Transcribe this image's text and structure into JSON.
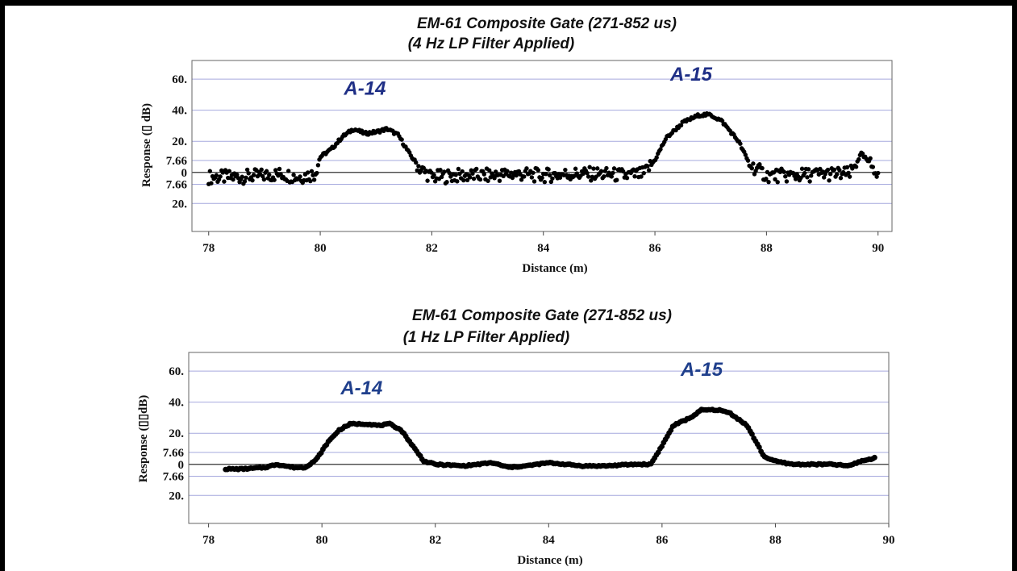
{
  "chart_data": [
    {
      "type": "scatter",
      "title": "EM-61 Composite Gate (271-852 us)",
      "subtitle": "(4 Hz LP Filter Applied)",
      "xlabel": "Distance (m)",
      "ylabel": "Response (▯ dB)",
      "xlim": [
        77.7,
        90.25
      ],
      "ylim": [
        -38,
        72
      ],
      "x_ticks": [
        78,
        80,
        82,
        84,
        86,
        88,
        90
      ],
      "x_tick_labels": [
        "78",
        "80",
        "82",
        "84",
        "86",
        "88",
        "90"
      ],
      "y_ticks": [
        60,
        40,
        20,
        7.66,
        0,
        -7.66,
        -20
      ],
      "y_tick_labels": [
        "60.",
        "40.",
        "20.",
        "7.66",
        "0",
        "7.66",
        "20."
      ],
      "grid": true,
      "annotations": [
        {
          "text": "A-14",
          "x": 80.8,
          "y": 50,
          "color": "#1f2f86"
        },
        {
          "text": "A-15",
          "x": 86.65,
          "y": 59,
          "color": "#1f2f86"
        }
      ],
      "series": [
        {
          "marker": "dot",
          "x": [
            78.0,
            78.5,
            79.0,
            79.3,
            79.6,
            79.9,
            80.0,
            80.2,
            80.4,
            80.6,
            80.8,
            81.0,
            81.2,
            81.4,
            81.6,
            81.8,
            82.0,
            82.5,
            83.0,
            83.5,
            84.0,
            84.5,
            85.0,
            85.5,
            85.8,
            86.0,
            86.2,
            86.5,
            86.8,
            87.0,
            87.2,
            87.5,
            87.7,
            88.0,
            88.5,
            89.0,
            89.5,
            89.7,
            90.0
          ],
          "values": [
            -3,
            -3,
            -2,
            -1,
            -3,
            -1,
            10,
            15,
            23,
            28,
            25,
            26,
            28,
            24,
            12,
            2,
            -3,
            -2,
            -2,
            -1,
            -2,
            -1,
            -1,
            -2,
            -1,
            8,
            22,
            32,
            37,
            37,
            33,
            20,
            5,
            -2,
            -2,
            -1,
            -1,
            12,
            0
          ]
        }
      ]
    },
    {
      "type": "line",
      "title": "EM-61 Composite Gate (271-852 us)",
      "subtitle": "(1 Hz LP Filter Applied)",
      "xlabel": "Distance (m)",
      "ylabel": "Response (▯▯dB)",
      "xlim": [
        77.65,
        90.0
      ],
      "ylim": [
        -38,
        72
      ],
      "x_ticks": [
        78,
        80,
        82,
        84,
        86,
        88,
        90
      ],
      "x_tick_labels": [
        "78",
        "80",
        "82",
        "84",
        "86",
        "88",
        "90"
      ],
      "y_ticks": [
        60,
        40,
        20,
        7.66,
        0,
        -7.66,
        -20
      ],
      "y_tick_labels": [
        "60.",
        "40.",
        "20.",
        "7.66",
        "0",
        "7.66",
        "20."
      ],
      "grid": true,
      "annotations": [
        {
          "text": "A-14",
          "x": 80.7,
          "y": 45,
          "color": "#1f3f8c"
        },
        {
          "text": "A-15",
          "x": 86.7,
          "y": 57,
          "color": "#1f3f8c"
        }
      ],
      "series": [
        {
          "marker": "thick-line",
          "x": [
            78.3,
            78.6,
            79.0,
            79.2,
            79.5,
            79.7,
            79.9,
            80.1,
            80.3,
            80.5,
            80.8,
            81.0,
            81.2,
            81.4,
            81.6,
            81.8,
            82.0,
            82.5,
            83.0,
            83.3,
            83.6,
            84.0,
            84.3,
            84.6,
            85.0,
            85.5,
            85.8,
            86.0,
            86.2,
            86.5,
            86.7,
            87.0,
            87.2,
            87.5,
            87.8,
            88.0,
            88.3,
            88.6,
            89.0,
            89.3,
            89.5,
            89.75
          ],
          "values": [
            -3,
            -3,
            -2,
            0,
            -2,
            -2,
            3,
            14,
            22,
            26,
            26,
            25,
            26,
            22,
            12,
            2,
            0,
            -1,
            1,
            -2,
            -1,
            1,
            0,
            -1,
            -1,
            0,
            0,
            12,
            25,
            30,
            35,
            35,
            33,
            25,
            5,
            2,
            0,
            0,
            0,
            -1,
            2,
            4
          ]
        }
      ]
    }
  ]
}
